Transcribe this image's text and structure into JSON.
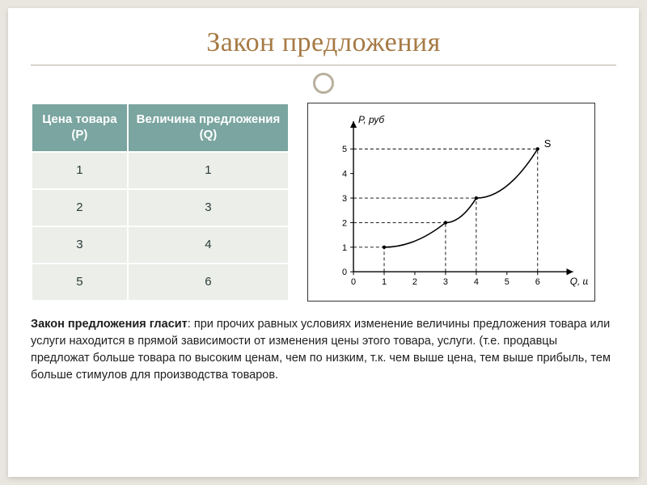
{
  "title": "Закон предложения",
  "table": {
    "header_bg": "#7aa5a0",
    "header_fg": "#ffffff",
    "cell_bg": "#ebeee9",
    "cell_fg": "#2a3a38",
    "columns": [
      "Цена товара (P)",
      "Величина предложения (Q)"
    ],
    "rows": [
      [
        "1",
        "1"
      ],
      [
        "2",
        "3"
      ],
      [
        "3",
        "4"
      ],
      [
        "5",
        "6"
      ]
    ]
  },
  "chart": {
    "type": "line",
    "x_values": [
      1,
      3,
      4,
      6
    ],
    "y_values": [
      1,
      2,
      3,
      5
    ],
    "xlim": [
      0,
      7
    ],
    "ylim": [
      0,
      6
    ],
    "xtick_labels": [
      "0",
      "1",
      "2",
      "3",
      "4",
      "5",
      "6"
    ],
    "ytick_labels": [
      "0",
      "1",
      "2",
      "3",
      "4",
      "5"
    ],
    "y_axis_label": "P, руб",
    "x_axis_label": "Q, шт.",
    "curve_label": "S",
    "curve_color": "#000000",
    "dashed_color": "#000000",
    "axis_color": "#000000",
    "background_color": "#ffffff",
    "tick_fontsize": 11,
    "label_fontsize": 12,
    "line_width": 1.6,
    "marker_radius": 2.2
  },
  "body": {
    "lead": "Закон предложения гласит",
    "rest": ": при прочих равных условиях изменение величины предложения товара или услуги находится в прямой зависимости от изменения цены этого товара, услуги. (т.е. продавцы предложат больше товара по высоким ценам, чем по низким, т.к. чем выше цена, тем выше прибыль, тем больше стимулов для производства товаров."
  },
  "colors": {
    "slide_bg": "#ffffff",
    "page_bg": "#e8e6df",
    "title_color": "#a67a45",
    "rule_color": "#b8b09e"
  }
}
